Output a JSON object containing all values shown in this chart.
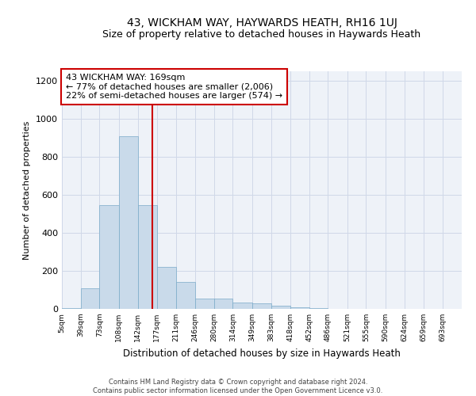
{
  "title": "43, WICKHAM WAY, HAYWARDS HEATH, RH16 1UJ",
  "subtitle": "Size of property relative to detached houses in Haywards Heath",
  "xlabel": "Distribution of detached houses by size in Haywards Heath",
  "ylabel": "Number of detached properties",
  "footer_line1": "Contains HM Land Registry data © Crown copyright and database right 2024.",
  "footer_line2": "Contains public sector information licensed under the Open Government Licence v3.0.",
  "annotation_line1": "43 WICKHAM WAY: 169sqm",
  "annotation_line2": "← 77% of detached houses are smaller (2,006)",
  "annotation_line3": "22% of semi-detached houses are larger (574) →",
  "bar_color": "#c9daea",
  "bar_edge_color": "#7aaac8",
  "bar_heights": [
    5,
    110,
    545,
    910,
    545,
    220,
    140,
    55,
    55,
    35,
    30,
    15,
    10,
    5,
    0,
    0,
    0,
    0,
    0,
    0,
    0
  ],
  "bin_edges": [
    5,
    39,
    73,
    108,
    142,
    177,
    211,
    246,
    280,
    314,
    349,
    383,
    418,
    452,
    486,
    521,
    555,
    590,
    624,
    659,
    693,
    728
  ],
  "tick_labels": [
    "5sqm",
    "39sqm",
    "73sqm",
    "108sqm",
    "142sqm",
    "177sqm",
    "211sqm",
    "246sqm",
    "280sqm",
    "314sqm",
    "349sqm",
    "383sqm",
    "418sqm",
    "452sqm",
    "486sqm",
    "521sqm",
    "555sqm",
    "590sqm",
    "624sqm",
    "659sqm",
    "693sqm"
  ],
  "ylim": [
    0,
    1250
  ],
  "yticks": [
    0,
    200,
    400,
    600,
    800,
    1000,
    1200
  ],
  "vline_x": 169,
  "vline_color": "#cc0000",
  "annotation_box_color": "#ffffff",
  "annotation_box_edge_color": "#cc0000",
  "grid_color": "#d0d8e8",
  "bg_color": "#eef2f8",
  "title_fontsize": 10,
  "subtitle_fontsize": 9,
  "annotation_fontsize": 8
}
